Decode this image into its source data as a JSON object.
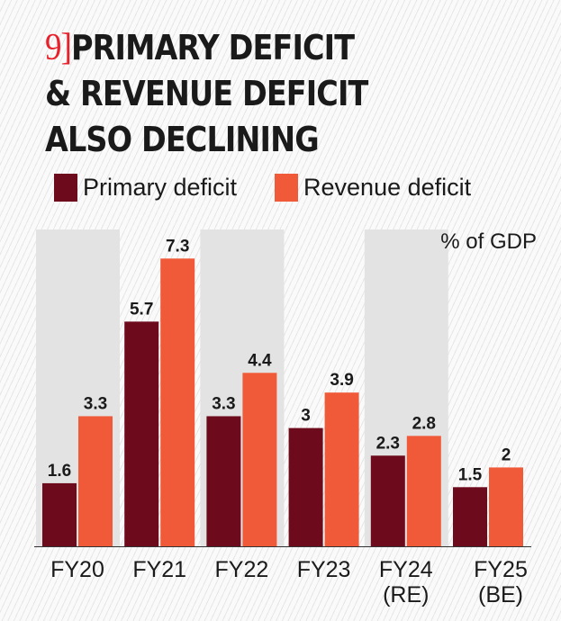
{
  "title_number": "9]",
  "title": "PRIMARY DEFICIT & REVENUE DEFICIT ALSO DECLINING",
  "title_lines": [
    "PRIMARY DEFICIT",
    "& REVENUE DEFICIT",
    "ALSO DECLINING"
  ],
  "chart_data": {
    "type": "bar",
    "title": "PRIMARY DEFICIT & REVENUE DEFICIT ALSO DECLINING",
    "unit_label": "% of GDP",
    "categories": [
      "FY20",
      "FY21",
      "FY22",
      "FY23",
      "FY24 (RE)",
      "FY25 (BE)"
    ],
    "category_lines": [
      [
        "FY20"
      ],
      [
        "FY21"
      ],
      [
        "FY22"
      ],
      [
        "FY23"
      ],
      [
        "FY24",
        "(RE)"
      ],
      [
        "FY25",
        "(BE)"
      ]
    ],
    "series": [
      {
        "name": "Primary deficit",
        "color": "#6d0a1c",
        "values": [
          1.6,
          5.7,
          3.3,
          3,
          2.3,
          1.5
        ],
        "labels": [
          "1.6",
          "5.7",
          "3.3",
          "3",
          "2.3",
          "1.5"
        ]
      },
      {
        "name": "Revenue deficit",
        "color": "#f15a38",
        "values": [
          3.3,
          7.3,
          4.4,
          3.9,
          2.8,
          2
        ],
        "labels": [
          "3.3",
          "7.3",
          "4.4",
          "3.9",
          "2.8",
          "2"
        ]
      }
    ],
    "ylim": [
      0,
      8
    ],
    "legend": "top-left",
    "grid": false
  }
}
